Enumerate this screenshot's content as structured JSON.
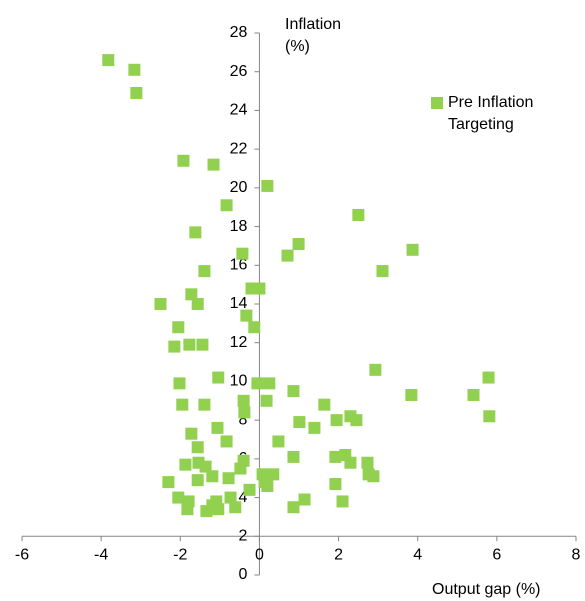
{
  "chart_data": {
    "type": "scatter",
    "x_label": "Output gap (%)",
    "y_label": "Inflation (%)",
    "xlim": [
      -6,
      8
    ],
    "xticks": [
      -6,
      -4,
      -2,
      0,
      2,
      4,
      6,
      8
    ],
    "ylim": [
      0,
      28
    ],
    "yticks": [
      0,
      2,
      4,
      6,
      8,
      10,
      12,
      14,
      16,
      18,
      20,
      22,
      24,
      26,
      28
    ],
    "x_axis_crosses_y": 2,
    "legend": "upper right",
    "series": [
      {
        "name": "Pre Inflation Targeting",
        "color": "#92d050",
        "x": [
          -3.82,
          -3.16,
          -3.11,
          -1.92,
          -1.16,
          0.2,
          -0.83,
          2.5,
          0.99,
          3.87,
          -1.62,
          -0.43,
          0.71,
          3.11,
          -1.39,
          -0.2,
          0,
          -2.5,
          -1.72,
          -1.56,
          -0.33,
          -0.13,
          -2.05,
          -2.15,
          -1.77,
          -1.44,
          -1.04,
          2.93,
          5.79,
          -2.02,
          -0.05,
          0.25,
          0.86,
          3.84,
          5.41,
          5.81,
          -1.95,
          -1.39,
          -0.4,
          0.18,
          -0.38,
          1.64,
          1.01,
          1.39,
          1.95,
          2.3,
          2.45,
          -1.06,
          -1.72,
          -0.83,
          0.48,
          -1.56,
          0.86,
          1.92,
          2.17,
          2.3,
          2.73,
          2.76,
          2.88,
          -1.87,
          -1.54,
          -1.36,
          -0.4,
          -0.48,
          -1.19,
          0.08,
          0.35,
          -2.3,
          -1.56,
          -0.78,
          0.13,
          0.2,
          -0.25,
          1.92,
          -2.05,
          -1.79,
          -1.09,
          -0.73,
          -1.19,
          -1.82,
          -1.34,
          -1.04,
          -0.61,
          1.14,
          0.86,
          2.1
        ],
        "values": [
          26.6,
          26.1,
          24.9,
          21.4,
          21.2,
          20.1,
          19.1,
          18.6,
          17.1,
          16.8,
          17.7,
          16.6,
          16.5,
          15.7,
          15.7,
          14.8,
          14.8,
          14.0,
          14.5,
          14.0,
          13.4,
          12.8,
          12.8,
          11.8,
          11.9,
          11.9,
          10.2,
          10.6,
          10.2,
          9.9,
          9.9,
          9.9,
          9.5,
          9.3,
          9.3,
          8.2,
          8.8,
          8.8,
          9.0,
          9.0,
          8.4,
          8.8,
          7.9,
          7.6,
          8.0,
          8.2,
          8.0,
          7.6,
          7.3,
          6.9,
          6.9,
          6.6,
          6.1,
          6.1,
          6.2,
          5.8,
          5.8,
          5.2,
          5.1,
          5.7,
          5.8,
          5.6,
          5.9,
          5.5,
          5.1,
          5.2,
          5.2,
          4.8,
          4.9,
          5.0,
          4.8,
          4.6,
          4.4,
          4.7,
          4.0,
          3.8,
          3.8,
          4.0,
          3.6,
          3.4,
          3.3,
          3.4,
          3.5,
          3.9,
          3.5,
          3.8
        ]
      }
    ]
  }
}
